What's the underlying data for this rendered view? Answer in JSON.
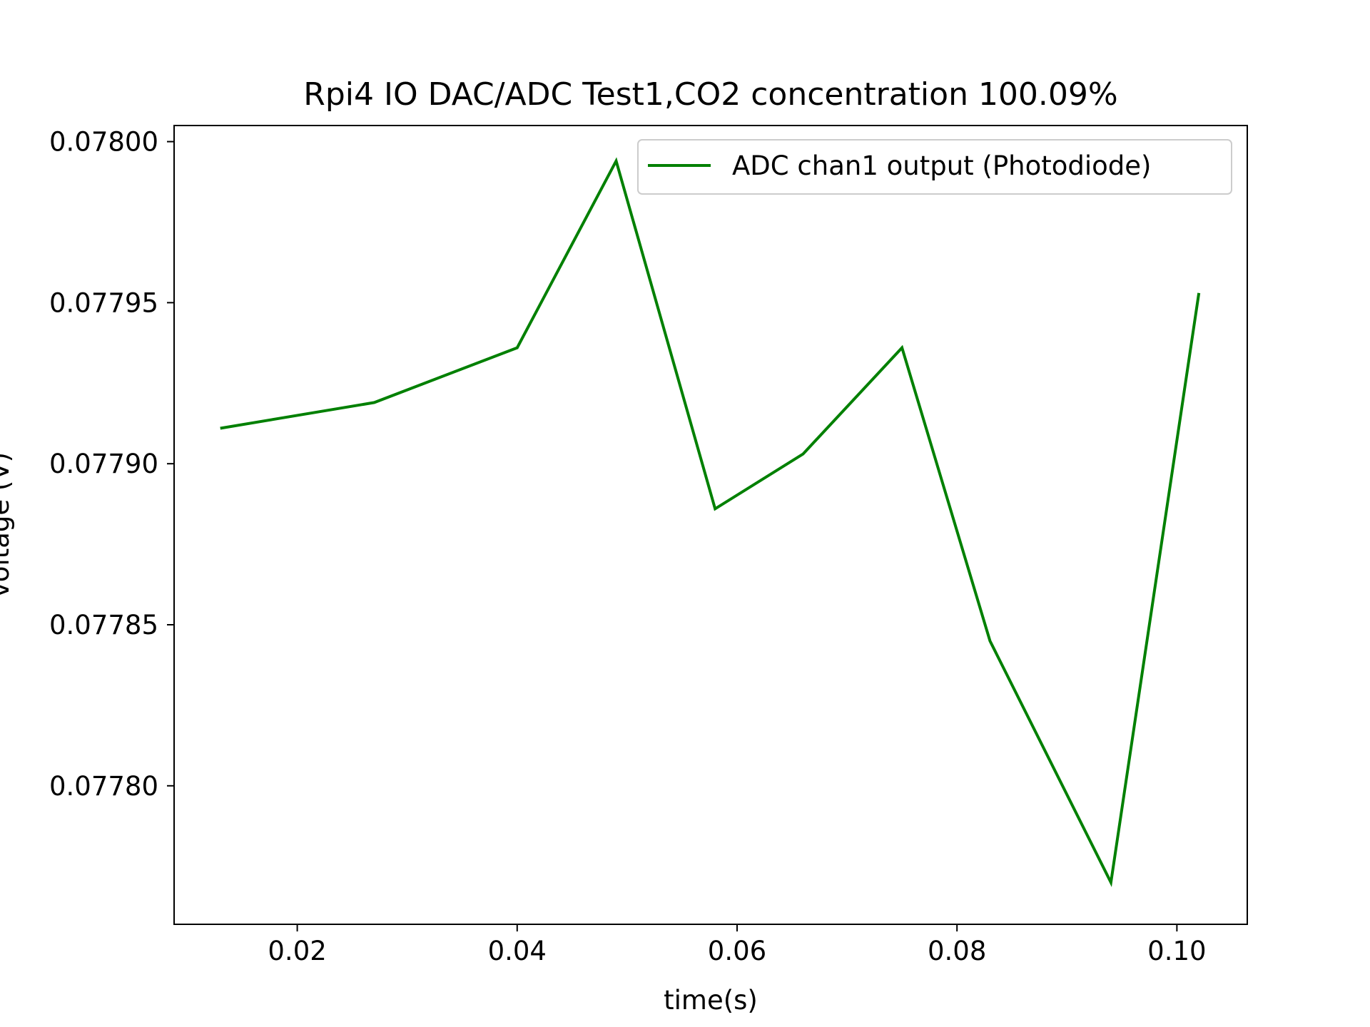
{
  "chart_data": {
    "type": "line",
    "title": "Rpi4 IO DAC/ADC Test1,CO2 concentration 100.09%",
    "xlabel": "time(s)",
    "ylabel": "voltage (V)",
    "xlim": [
      0.0088,
      0.1064
    ],
    "ylim": [
      0.077757,
      0.078005
    ],
    "x_ticks": [
      0.02,
      0.04,
      0.06,
      0.08,
      0.1
    ],
    "x_tick_labels": [
      "0.02",
      "0.04",
      "0.06",
      "0.08",
      "0.10"
    ],
    "y_ticks": [
      0.0778,
      0.07785,
      0.0779,
      0.07795,
      0.078
    ],
    "y_tick_labels": [
      "0.07780",
      "0.07785",
      "0.07790",
      "0.07795",
      "0.07800"
    ],
    "grid": false,
    "legend_position": "top-right",
    "series": [
      {
        "name": "ADC chan1 output  (Photodiode)",
        "color": "#008000",
        "x": [
          0.013,
          0.027,
          0.04,
          0.049,
          0.058,
          0.066,
          0.075,
          0.083,
          0.094,
          0.102
        ],
        "y": [
          0.077911,
          0.077919,
          0.077936,
          0.077994,
          0.077886,
          0.077903,
          0.077936,
          0.077845,
          0.07777,
          0.077953
        ]
      }
    ]
  }
}
